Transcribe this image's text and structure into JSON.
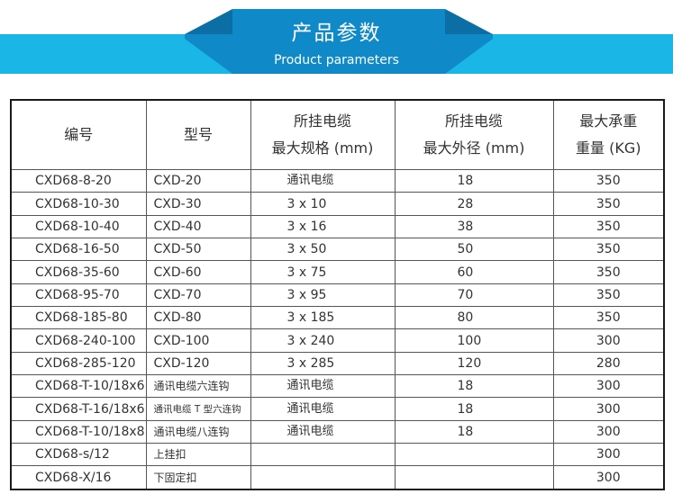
{
  "banner": {
    "title": "产品参数",
    "subtitle": "Product parameters",
    "band_color": "#19b6e6",
    "tab_color": "#1089c8",
    "tab_dark_color": "#0b6fa6"
  },
  "table": {
    "headers": {
      "code": "编号",
      "model": "型号",
      "spec_line1": "所挂电缆",
      "spec_line2": "最大规格 (mm)",
      "od_line1": "所挂电缆",
      "od_line2": "最大外径 (mm)",
      "load_line1": "最大承重",
      "load_line2": "重量 (KG)"
    },
    "rows": [
      {
        "code": "CXD68-8-20",
        "model": "CXD-20",
        "spec": "通讯电缆",
        "od": "18",
        "load": "350"
      },
      {
        "code": "CXD68-10-30",
        "model": "CXD-30",
        "spec": "3 x 10",
        "od": "28",
        "load": "350"
      },
      {
        "code": "CXD68-10-40",
        "model": "CXD-40",
        "spec": "3 x 16",
        "od": "38",
        "load": "350"
      },
      {
        "code": "CXD68-16-50",
        "model": "CXD-50",
        "spec": "3 x 50",
        "od": "50",
        "load": "350"
      },
      {
        "code": "CXD68-35-60",
        "model": "CXD-60",
        "spec": "3 x 75",
        "od": "60",
        "load": "350"
      },
      {
        "code": "CXD68-95-70",
        "model": "CXD-70",
        "spec": "3 x 95",
        "od": "70",
        "load": "350"
      },
      {
        "code": "CXD68-185-80",
        "model": "CXD-80",
        "spec": "3 x 185",
        "od": "80",
        "load": "350"
      },
      {
        "code": "CXD68-240-100",
        "model": "CXD-100",
        "spec": "3 x 240",
        "od": "100",
        "load": "300"
      },
      {
        "code": "CXD68-285-120",
        "model": "CXD-120",
        "spec": "3 x 285",
        "od": "120",
        "load": "280"
      },
      {
        "code": "CXD68-T-10/18x6",
        "model": "通讯电缆六连钩",
        "spec": "通讯电缆",
        "od": "18",
        "load": "300"
      },
      {
        "code": "CXD68-T-16/18x6",
        "model": "通讯电缆 T 型六连钩",
        "spec": "通讯电缆",
        "od": "18",
        "load": "300"
      },
      {
        "code": "CXD68-T-10/18x8",
        "model": "通讯电缆八连钩",
        "spec": "通讯电缆",
        "od": "18",
        "load": "300"
      },
      {
        "code": "CXD68-s/12",
        "model": "上挂扣",
        "spec": "",
        "od": "",
        "load": "300"
      },
      {
        "code": "CXD68-X/16",
        "model": "下固定扣",
        "spec": "",
        "od": "",
        "load": "300"
      }
    ]
  }
}
